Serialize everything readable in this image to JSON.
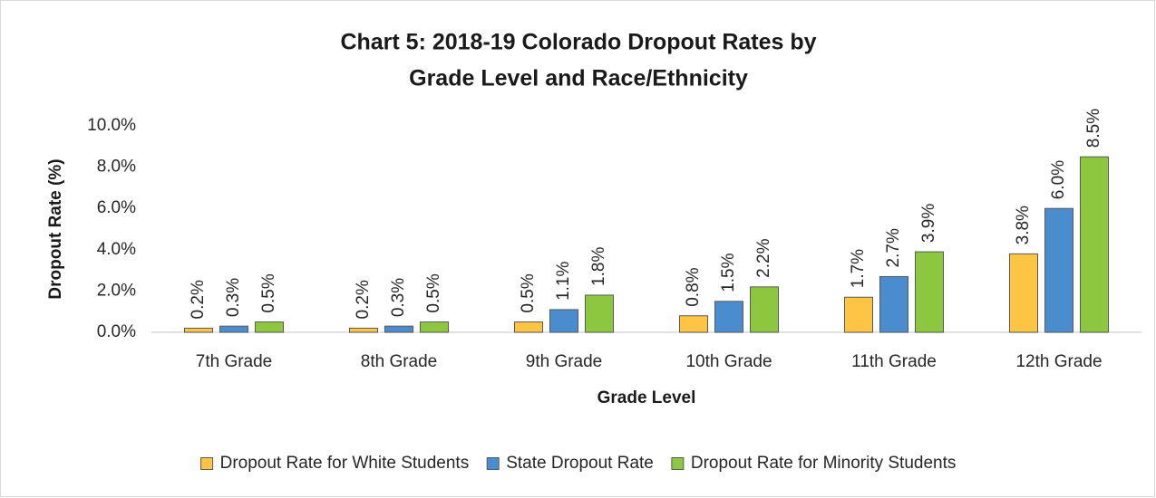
{
  "chart_data": {
    "type": "bar",
    "title": [
      "Chart 5: 2018-19 Colorado Dropout Rates by",
      "Grade Level and Race/Ethnicity"
    ],
    "x_label": "Grade Level",
    "y_label": "Dropout  Rate (%)",
    "categories": [
      "7th Grade",
      "8th Grade",
      "9th Grade",
      "10th Grade",
      "11th Grade",
      "12th Grade"
    ],
    "series": [
      {
        "name": "Dropout Rate for White Students",
        "color": "#fdc543",
        "values": [
          0.2,
          0.2,
          0.5,
          0.8,
          1.7,
          3.8
        ],
        "value_labels": [
          "0.2%",
          "0.2%",
          "0.5%",
          "0.8%",
          "1.7%",
          "3.8%"
        ]
      },
      {
        "name": "State Dropout Rate",
        "color": "#4a8dcf",
        "values": [
          0.3,
          0.3,
          1.1,
          1.5,
          2.7,
          6.0
        ],
        "value_labels": [
          "0.3%",
          "0.3%",
          "1.1%",
          "1.5%",
          "2.7%",
          "6.0%"
        ]
      },
      {
        "name": "Dropout Rate for Minority Students",
        "color": "#8dc63f",
        "values": [
          0.5,
          0.5,
          1.8,
          2.2,
          3.9,
          8.5
        ],
        "value_labels": [
          "0.5%",
          "0.5%",
          "1.8%",
          "2.2%",
          "3.9%",
          "8.5%"
        ]
      }
    ],
    "ylim": [
      0,
      10
    ],
    "yticks": [
      {
        "value": 0,
        "label": "0.0%"
      },
      {
        "value": 2,
        "label": "2.0%"
      },
      {
        "value": 4,
        "label": "4.0%"
      },
      {
        "value": 6,
        "label": "6.0%"
      },
      {
        "value": 8,
        "label": "8.0%"
      },
      {
        "value": 10,
        "label": "10.0%"
      }
    ],
    "legend": "bottom"
  }
}
